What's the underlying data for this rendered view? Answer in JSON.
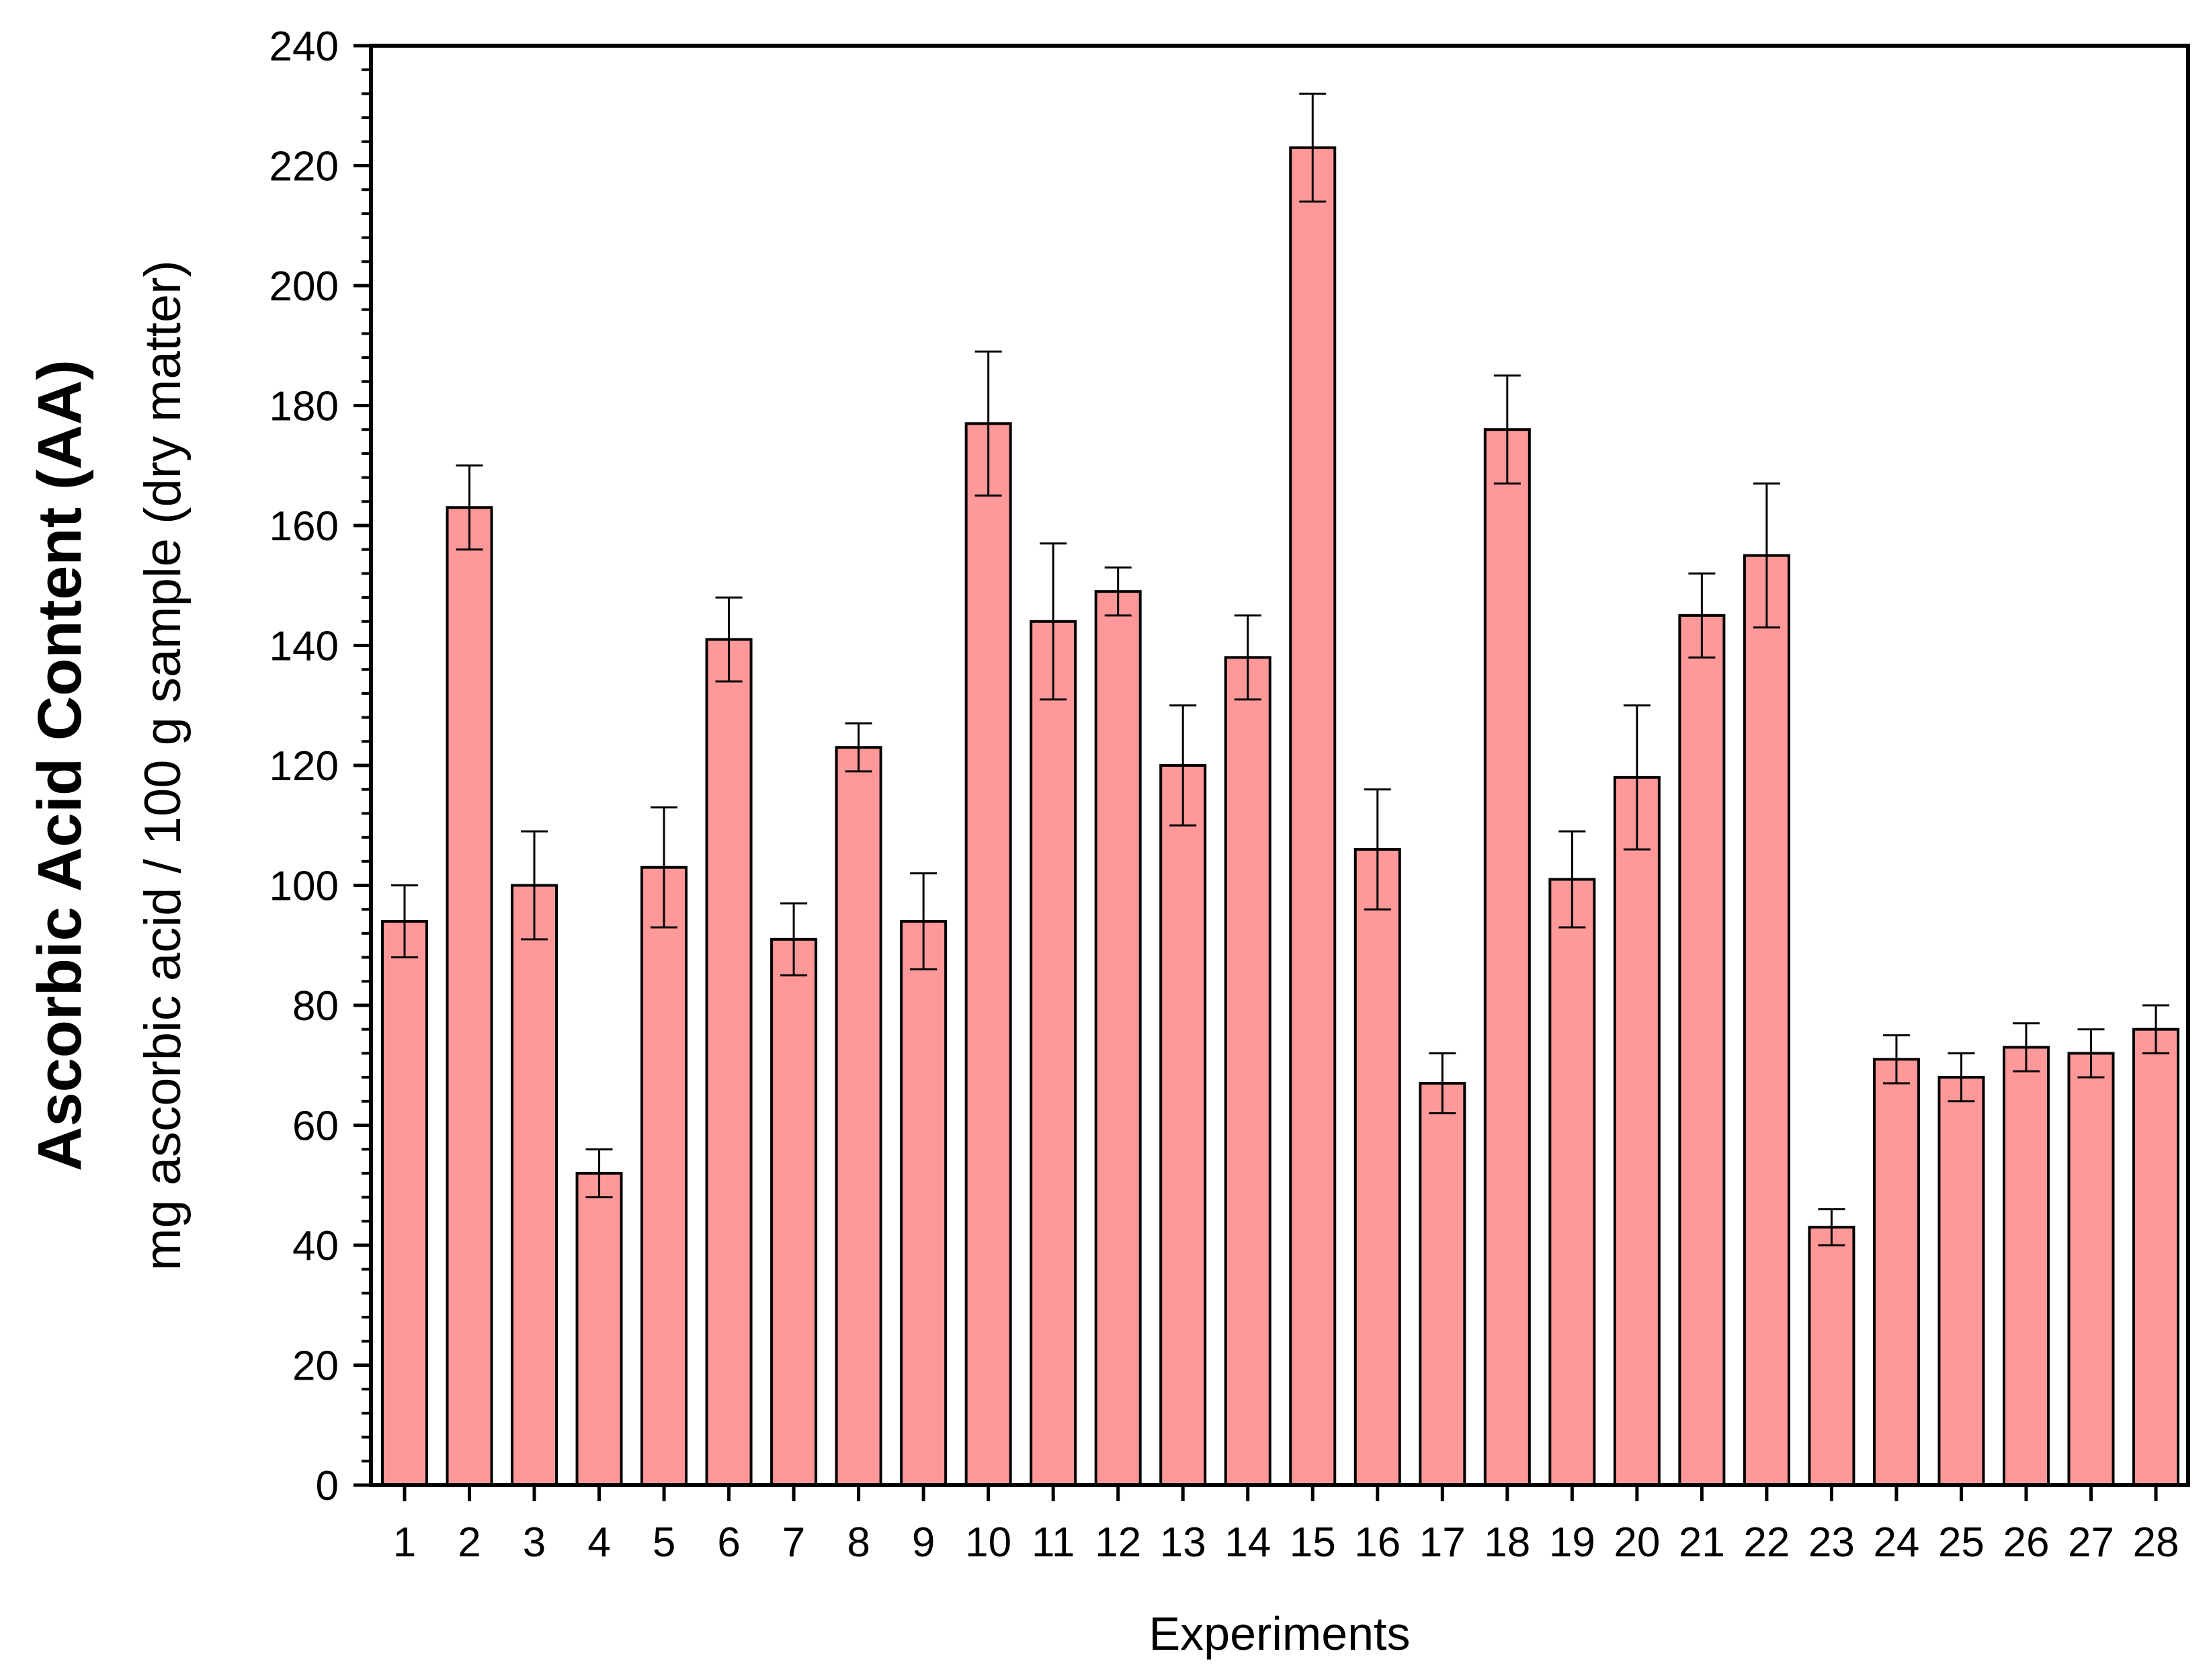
{
  "chart_data": {
    "type": "bar",
    "xlabel": "Experiments",
    "ylabel": "Ascorbic Acid Content (AA)",
    "ylabel_units": "mg ascorbic acid / 100 g sample (dry matter)",
    "ylim": [
      0,
      240
    ],
    "yticks": [
      0,
      20,
      40,
      60,
      80,
      100,
      120,
      140,
      160,
      180,
      200,
      220,
      240
    ],
    "grid": false,
    "legend": "none",
    "bar_color": "#ff9999",
    "edge_color": "#000000",
    "categories": [
      "1",
      "2",
      "3",
      "4",
      "5",
      "6",
      "7",
      "8",
      "9",
      "10",
      "11",
      "12",
      "13",
      "14",
      "15",
      "16",
      "17",
      "18",
      "19",
      "20",
      "21",
      "22",
      "23",
      "24",
      "25",
      "26",
      "27",
      "28"
    ],
    "values": [
      94,
      163,
      100,
      52,
      103,
      141,
      91,
      123,
      94,
      177,
      144,
      149,
      120,
      138,
      223,
      106,
      67,
      176,
      101,
      118,
      145,
      155,
      43,
      71,
      68,
      73,
      72,
      76
    ],
    "errors": [
      6,
      7,
      9,
      4,
      10,
      7,
      6,
      4,
      8,
      12,
      13,
      4,
      10,
      7,
      9,
      10,
      5,
      9,
      8,
      12,
      7,
      12,
      3,
      4,
      4,
      4,
      4,
      4
    ]
  }
}
